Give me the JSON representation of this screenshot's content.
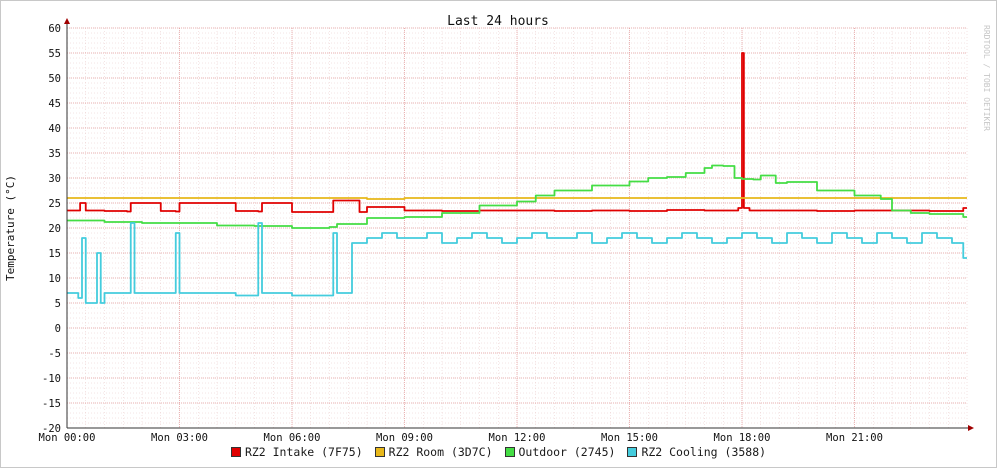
{
  "chart_data": {
    "type": "line",
    "title": "Last 24 hours",
    "ylabel": "Temperature (°C)",
    "xlabel": "",
    "watermark": "RRDTOOL / TOBI OETIKER",
    "ylim": [
      -20,
      60
    ],
    "y_ticks": [
      -20,
      -15,
      -10,
      -5,
      0,
      5,
      10,
      15,
      20,
      25,
      30,
      35,
      40,
      45,
      50,
      55,
      60
    ],
    "x_ticks": [
      {
        "h": 0,
        "label": "Mon 00:00"
      },
      {
        "h": 3,
        "label": "Mon 03:00"
      },
      {
        "h": 6,
        "label": "Mon 06:00"
      },
      {
        "h": 9,
        "label": "Mon 09:00"
      },
      {
        "h": 12,
        "label": "Mon 12:00"
      },
      {
        "h": 15,
        "label": "Mon 15:00"
      },
      {
        "h": 18,
        "label": "Mon 18:00"
      },
      {
        "h": 21,
        "label": "Mon 21:00"
      }
    ],
    "xlim_hours": [
      0,
      24
    ],
    "grid": true,
    "legend_position": "bottom",
    "series": [
      {
        "name": "RZ2 Intake (7F75)",
        "color": "#e00000",
        "x": [
          0,
          0.35,
          0.5,
          1.0,
          1.6,
          1.7,
          2.5,
          2.9,
          3.0,
          4.5,
          5.1,
          5.2,
          6.0,
          7.0,
          7.1,
          7.8,
          8.0,
          9.0,
          10.0,
          11.0,
          12.0,
          13.0,
          14.0,
          15.0,
          16.0,
          17.0,
          17.9,
          18.0,
          18.05,
          18.2,
          19.0,
          20.0,
          21.0,
          22.0,
          23.0,
          23.9
        ],
        "y": [
          23.5,
          25.0,
          23.5,
          23.4,
          23.3,
          25.0,
          23.4,
          23.3,
          25.0,
          23.4,
          23.3,
          25.0,
          23.2,
          23.2,
          25.5,
          23.2,
          24.2,
          23.5,
          23.4,
          23.5,
          23.5,
          23.4,
          23.5,
          23.4,
          23.6,
          23.5,
          24.0,
          55.0,
          24.0,
          23.5,
          23.5,
          23.4,
          23.5,
          23.5,
          23.4,
          24.0
        ]
      },
      {
        "name": "RZ2 Room (3D7C)",
        "color": "#e8b81a",
        "x": [
          0,
          3,
          6,
          7,
          8,
          9,
          12,
          15,
          18,
          21,
          24
        ],
        "y": [
          26.0,
          26.0,
          26.0,
          26.0,
          25.8,
          26.0,
          26.0,
          26.0,
          26.0,
          26.0,
          26.0
        ]
      },
      {
        "name": "Outdoor (2745)",
        "color": "#44dd44",
        "x": [
          0,
          1,
          2,
          3,
          4,
          5,
          6,
          7,
          7.2,
          8,
          9,
          10,
          11,
          12,
          12.5,
          13,
          14,
          15,
          15.5,
          16,
          16.5,
          17,
          17.2,
          17.5,
          17.8,
          18.0,
          18.3,
          18.5,
          18.9,
          19.2,
          20,
          21,
          21.7,
          22,
          22.5,
          23,
          23.9
        ],
        "y": [
          21.5,
          21.2,
          21.0,
          21.0,
          20.5,
          20.4,
          20.0,
          20.2,
          20.8,
          22.0,
          22.2,
          23.0,
          24.5,
          25.3,
          26.5,
          27.5,
          28.5,
          29.3,
          30.0,
          30.2,
          31.0,
          32.0,
          32.5,
          32.4,
          30.0,
          29.8,
          29.7,
          30.5,
          29.0,
          29.2,
          27.5,
          26.5,
          25.8,
          23.5,
          23.0,
          22.8,
          22.2
        ]
      },
      {
        "name": "RZ2 Cooling (3588)",
        "color": "#44ccdd",
        "x": [
          0,
          0.3,
          0.4,
          0.5,
          0.8,
          0.9,
          1.0,
          1.6,
          1.7,
          1.8,
          2.5,
          2.8,
          2.9,
          3.0,
          4.5,
          5.0,
          5.1,
          5.2,
          6.0,
          7.0,
          7.1,
          7.2,
          7.6,
          8.0,
          8.4,
          8.8,
          9.2,
          9.6,
          10.0,
          10.4,
          10.8,
          11.2,
          11.6,
          12.0,
          12.4,
          12.8,
          13.2,
          13.6,
          14.0,
          14.4,
          14.8,
          15.2,
          15.6,
          16.0,
          16.4,
          16.8,
          17.2,
          17.6,
          18.0,
          18.4,
          18.8,
          19.2,
          19.6,
          20.0,
          20.4,
          20.8,
          21.2,
          21.6,
          22.0,
          22.4,
          22.8,
          23.2,
          23.6,
          23.9
        ],
        "y": [
          7.0,
          6.0,
          18.0,
          5.0,
          15.0,
          5.0,
          7.0,
          7.0,
          21.0,
          7.0,
          7.0,
          7.0,
          19.0,
          7.0,
          6.5,
          6.5,
          21.0,
          7.0,
          6.5,
          6.5,
          19.0,
          7.0,
          17.0,
          18.0,
          19.0,
          18.0,
          18.0,
          19.0,
          17.0,
          18.0,
          19.0,
          18.0,
          17.0,
          18.0,
          19.0,
          18.0,
          18.0,
          19.0,
          17.0,
          18.0,
          19.0,
          18.0,
          17.0,
          18.0,
          19.0,
          18.0,
          17.0,
          18.0,
          19.0,
          18.0,
          17.0,
          19.0,
          18.0,
          17.0,
          19.0,
          18.0,
          17.0,
          19.0,
          18.0,
          17.0,
          19.0,
          18.0,
          17.0,
          14.0
        ]
      }
    ]
  },
  "legend": [
    {
      "label": "RZ2 Intake (7F75)",
      "color": "#e00000"
    },
    {
      "label": "RZ2 Room (3D7C)",
      "color": "#e8b81a"
    },
    {
      "label": "Outdoor (2745)",
      "color": "#44dd44"
    },
    {
      "label": "RZ2 Cooling (3588)",
      "color": "#44ccdd"
    }
  ]
}
